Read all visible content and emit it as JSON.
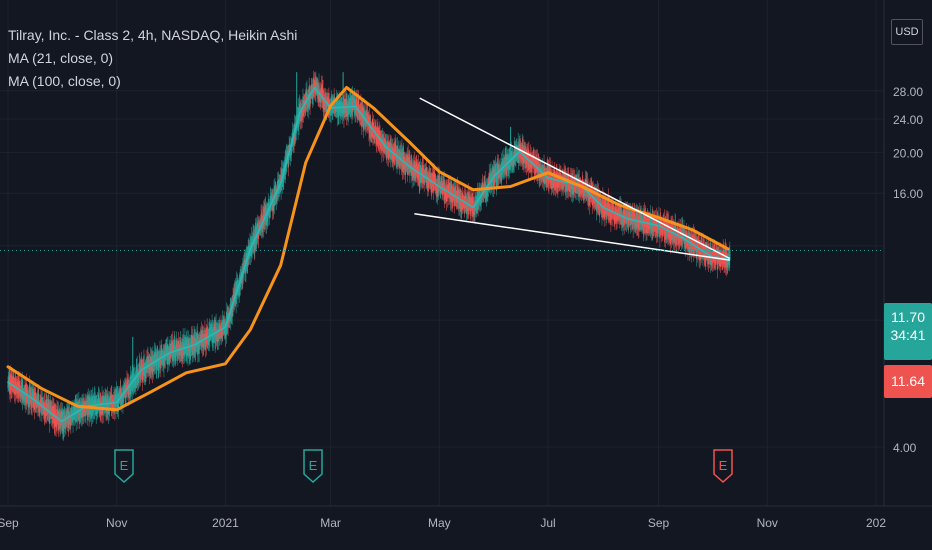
{
  "legend": {
    "title": "Tilray, Inc. - Class 2, 4h, NASDAQ, Heikin Ashi",
    "ma21": "MA (21, close, 0)",
    "ma100": "MA (100, close, 0)"
  },
  "currency": "USD",
  "price_tags": {
    "last": "11.70",
    "countdown": "34:41",
    "ask": "11.64"
  },
  "events": [
    {
      "label": "E",
      "date": "2020-11-05",
      "color": "#26a69a"
    },
    {
      "label": "E",
      "date": "2021-02-19",
      "color": "#26a69a"
    },
    {
      "label": "E",
      "date": "2021-10-07",
      "color": "#ef5350"
    }
  ],
  "colors": {
    "background": "#131722",
    "up": "#26a69a",
    "down": "#ef5350",
    "ma21": "#2db7b7",
    "ma100": "#f7931a",
    "grid": "#1e222d",
    "text": "#b2b5be",
    "trendline": "#ffffff"
  },
  "chart_data": {
    "type": "line",
    "title": "Tilray, Inc. - Class 2, 4h, NASDAQ, Heikin Ashi",
    "scale": "log",
    "x_ticks": [
      {
        "label": "Sep",
        "date": "2020-09-01"
      },
      {
        "label": "Nov",
        "date": "2020-11-01"
      },
      {
        "label": "2021",
        "date": "2021-01-01"
      },
      {
        "label": "Mar",
        "date": "2021-03-01"
      },
      {
        "label": "May",
        "date": "2021-05-01"
      },
      {
        "label": "Jul",
        "date": "2021-07-01"
      },
      {
        "label": "Sep",
        "date": "2021-09-01"
      },
      {
        "label": "Nov",
        "date": "2021-11-01"
      },
      {
        "label": "202",
        "date": "2022-01-01"
      }
    ],
    "y_ticks": [
      "28.00",
      "24.00",
      "20.00",
      "16.00",
      "4.00"
    ],
    "ylim": [
      3.6,
      32
    ],
    "series": [
      {
        "name": "MA (21, close, 0)",
        "color": "#2db7b7",
        "points": [
          [
            "2020-09-01",
            5.7
          ],
          [
            "2020-09-15",
            5.2
          ],
          [
            "2020-10-01",
            4.6
          ],
          [
            "2020-10-15",
            5.0
          ],
          [
            "2020-11-01",
            5.1
          ],
          [
            "2020-11-15",
            6.1
          ],
          [
            "2020-12-01",
            6.7
          ],
          [
            "2020-12-15",
            7.0
          ],
          [
            "2021-01-01",
            7.7
          ],
          [
            "2021-01-15",
            11.8
          ],
          [
            "2021-02-01",
            16.9
          ],
          [
            "2021-02-12",
            25.0
          ],
          [
            "2021-02-20",
            28.5
          ],
          [
            "2021-03-01",
            25.5
          ],
          [
            "2021-03-15",
            25.7
          ],
          [
            "2021-04-01",
            20.6
          ],
          [
            "2021-04-15",
            18.4
          ],
          [
            "2021-05-01",
            16.6
          ],
          [
            "2021-05-20",
            14.8
          ],
          [
            "2021-06-01",
            17.6
          ],
          [
            "2021-06-15",
            20.1
          ],
          [
            "2021-07-01",
            17.4
          ],
          [
            "2021-07-20",
            16.6
          ],
          [
            "2021-08-01",
            14.8
          ],
          [
            "2021-08-15",
            13.9
          ],
          [
            "2021-09-01",
            13.4
          ],
          [
            "2021-09-15",
            12.5
          ],
          [
            "2021-10-01",
            11.3
          ],
          [
            "2021-10-10",
            11.2
          ]
        ]
      },
      {
        "name": "MA (100, close, 0)",
        "color": "#f7931a",
        "points": [
          [
            "2020-09-01",
            6.2
          ],
          [
            "2020-09-20",
            5.5
          ],
          [
            "2020-10-10",
            5.0
          ],
          [
            "2020-11-01",
            4.9
          ],
          [
            "2020-11-20",
            5.4
          ],
          [
            "2020-12-10",
            6.0
          ],
          [
            "2021-01-01",
            6.3
          ],
          [
            "2021-01-15",
            7.6
          ],
          [
            "2021-02-01",
            10.8
          ],
          [
            "2021-02-15",
            18.9
          ],
          [
            "2021-03-01",
            25.8
          ],
          [
            "2021-03-10",
            28.5
          ],
          [
            "2021-03-25",
            25.5
          ],
          [
            "2021-04-15",
            21.0
          ],
          [
            "2021-05-01",
            18.0
          ],
          [
            "2021-05-20",
            16.3
          ],
          [
            "2021-06-10",
            16.6
          ],
          [
            "2021-07-01",
            17.9
          ],
          [
            "2021-07-20",
            16.6
          ],
          [
            "2021-08-10",
            15.0
          ],
          [
            "2021-09-01",
            14.0
          ],
          [
            "2021-09-20",
            13.1
          ],
          [
            "2021-10-10",
            11.8
          ]
        ]
      }
    ],
    "trendlines": [
      {
        "from": [
          "2021-04-20",
          26.9
        ],
        "to": [
          "2021-10-11",
          11.2
        ]
      },
      {
        "from": [
          "2021-04-17",
          14.3
        ],
        "to": [
          "2021-10-11",
          11.1
        ]
      }
    ],
    "last_price": 11.7
  }
}
